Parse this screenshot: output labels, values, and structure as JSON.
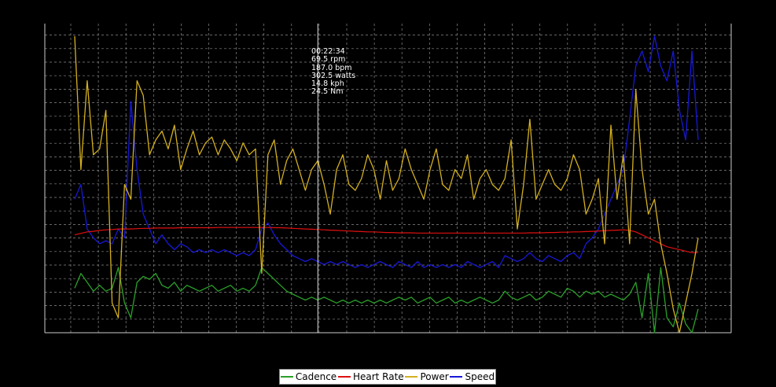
{
  "colors": {
    "background": "#000000",
    "grid": "#8a8a8a",
    "axis": "#cccccc",
    "crosshair": "#e0e0e0",
    "cadence": "#2aa02a",
    "heart_rate": "#e01010",
    "power": "#d4b020",
    "speed": "#1818d8"
  },
  "tooltip": {
    "time": "00:22:34",
    "cadence": "69.5 rpm",
    "heart_rate": "187.0 bpm",
    "power": "302.5 watts",
    "speed": "14.8 kph",
    "torque": "24.5 Nm"
  },
  "legend": {
    "cadence": "Cadence",
    "heart_rate": "Heart Rate",
    "power": "Power",
    "speed": "Speed"
  },
  "chart_data": {
    "type": "line",
    "title": "",
    "xlabel": "",
    "ylabel": "",
    "grid": true,
    "legend_position": "bottom",
    "crosshair_x": 0.39,
    "x": [
      0,
      0.01,
      0.02,
      0.03,
      0.04,
      0.05,
      0.06,
      0.07,
      0.08,
      0.09,
      0.1,
      0.11,
      0.12,
      0.13,
      0.14,
      0.15,
      0.16,
      0.17,
      0.18,
      0.19,
      0.2,
      0.21,
      0.22,
      0.23,
      0.24,
      0.25,
      0.26,
      0.27,
      0.28,
      0.29,
      0.3,
      0.31,
      0.32,
      0.33,
      0.34,
      0.35,
      0.36,
      0.37,
      0.38,
      0.39,
      0.4,
      0.41,
      0.42,
      0.43,
      0.44,
      0.45,
      0.46,
      0.47,
      0.48,
      0.49,
      0.5,
      0.51,
      0.52,
      0.53,
      0.54,
      0.55,
      0.56,
      0.57,
      0.58,
      0.59,
      0.6,
      0.61,
      0.62,
      0.63,
      0.64,
      0.65,
      0.66,
      0.67,
      0.68,
      0.69,
      0.7,
      0.71,
      0.72,
      0.73,
      0.74,
      0.75,
      0.76,
      0.77,
      0.78,
      0.79,
      0.8,
      0.81,
      0.82,
      0.83,
      0.84,
      0.85,
      0.86,
      0.87,
      0.88,
      0.89,
      0.9,
      0.91,
      0.92,
      0.93,
      0.94,
      0.95,
      0.96,
      0.97,
      0.98,
      0.99,
      1.0
    ],
    "series": [
      {
        "name": "Cadence",
        "values": [
          0.15,
          0.2,
          0.17,
          0.14,
          0.16,
          0.14,
          0.15,
          0.22,
          0.1,
          0.05,
          0.17,
          0.19,
          0.18,
          0.2,
          0.16,
          0.15,
          0.17,
          0.14,
          0.16,
          0.15,
          0.14,
          0.15,
          0.16,
          0.14,
          0.15,
          0.16,
          0.14,
          0.15,
          0.14,
          0.16,
          0.22,
          0.2,
          0.18,
          0.16,
          0.14,
          0.13,
          0.12,
          0.11,
          0.12,
          0.11,
          0.12,
          0.11,
          0.1,
          0.11,
          0.1,
          0.11,
          0.1,
          0.11,
          0.1,
          0.11,
          0.1,
          0.11,
          0.12,
          0.11,
          0.12,
          0.1,
          0.11,
          0.12,
          0.1,
          0.11,
          0.12,
          0.1,
          0.11,
          0.1,
          0.11,
          0.12,
          0.11,
          0.1,
          0.11,
          0.14,
          0.12,
          0.11,
          0.12,
          0.13,
          0.11,
          0.12,
          0.14,
          0.13,
          0.12,
          0.15,
          0.14,
          0.12,
          0.14,
          0.13,
          0.14,
          0.12,
          0.13,
          0.12,
          0.11,
          0.13,
          0.17,
          0.05,
          0.2,
          0.0,
          0.22,
          0.05,
          0.02,
          0.1,
          0.03,
          0.0,
          0.08
        ]
      },
      {
        "name": "Heart Rate",
        "values": [
          0.33,
          0.335,
          0.34,
          0.342,
          0.345,
          0.347,
          0.348,
          0.35,
          0.35,
          0.35,
          0.351,
          0.352,
          0.352,
          0.353,
          0.353,
          0.353,
          0.353,
          0.354,
          0.354,
          0.354,
          0.354,
          0.354,
          0.354,
          0.355,
          0.355,
          0.355,
          0.355,
          0.355,
          0.355,
          0.355,
          0.355,
          0.355,
          0.354,
          0.354,
          0.353,
          0.352,
          0.351,
          0.35,
          0.349,
          0.348,
          0.347,
          0.346,
          0.345,
          0.344,
          0.343,
          0.342,
          0.341,
          0.34,
          0.34,
          0.339,
          0.338,
          0.338,
          0.337,
          0.337,
          0.337,
          0.336,
          0.336,
          0.336,
          0.336,
          0.336,
          0.336,
          0.336,
          0.336,
          0.336,
          0.336,
          0.336,
          0.336,
          0.336,
          0.336,
          0.336,
          0.336,
          0.336,
          0.336,
          0.337,
          0.337,
          0.337,
          0.338,
          0.338,
          0.339,
          0.339,
          0.34,
          0.34,
          0.341,
          0.342,
          0.343,
          0.344,
          0.345,
          0.346,
          0.347,
          0.345,
          0.34,
          0.33,
          0.32,
          0.31,
          0.3,
          0.29,
          0.285,
          0.28,
          0.275,
          0.27,
          0.27
        ]
      },
      {
        "name": "Power",
        "values": [
          1.0,
          0.55,
          0.85,
          0.6,
          0.62,
          0.75,
          0.1,
          0.05,
          0.5,
          0.45,
          0.85,
          0.8,
          0.6,
          0.65,
          0.68,
          0.62,
          0.7,
          0.55,
          0.62,
          0.68,
          0.6,
          0.64,
          0.66,
          0.6,
          0.65,
          0.62,
          0.58,
          0.64,
          0.6,
          0.62,
          0.2,
          0.6,
          0.65,
          0.5,
          0.58,
          0.62,
          0.55,
          0.48,
          0.55,
          0.58,
          0.5,
          0.4,
          0.55,
          0.6,
          0.5,
          0.48,
          0.52,
          0.6,
          0.55,
          0.45,
          0.58,
          0.48,
          0.52,
          0.62,
          0.55,
          0.5,
          0.45,
          0.55,
          0.62,
          0.5,
          0.48,
          0.55,
          0.52,
          0.6,
          0.45,
          0.52,
          0.55,
          0.5,
          0.48,
          0.52,
          0.65,
          0.35,
          0.5,
          0.72,
          0.45,
          0.5,
          0.55,
          0.5,
          0.48,
          0.52,
          0.6,
          0.55,
          0.4,
          0.45,
          0.52,
          0.3,
          0.7,
          0.45,
          0.6,
          0.3,
          0.82,
          0.55,
          0.4,
          0.45,
          0.3,
          0.2,
          0.08,
          0.0,
          0.1,
          0.2,
          0.32
        ]
      },
      {
        "name": "Speed",
        "values": [
          0.45,
          0.5,
          0.35,
          0.32,
          0.3,
          0.31,
          0.3,
          0.35,
          0.32,
          0.78,
          0.55,
          0.4,
          0.35,
          0.3,
          0.33,
          0.3,
          0.28,
          0.3,
          0.29,
          0.27,
          0.28,
          0.27,
          0.28,
          0.27,
          0.28,
          0.27,
          0.26,
          0.27,
          0.26,
          0.28,
          0.35,
          0.37,
          0.33,
          0.3,
          0.28,
          0.26,
          0.25,
          0.24,
          0.25,
          0.24,
          0.23,
          0.24,
          0.23,
          0.24,
          0.23,
          0.22,
          0.23,
          0.22,
          0.23,
          0.24,
          0.23,
          0.22,
          0.24,
          0.23,
          0.22,
          0.24,
          0.22,
          0.23,
          0.22,
          0.23,
          0.22,
          0.23,
          0.22,
          0.24,
          0.23,
          0.22,
          0.23,
          0.24,
          0.22,
          0.26,
          0.25,
          0.24,
          0.25,
          0.27,
          0.25,
          0.24,
          0.26,
          0.25,
          0.24,
          0.26,
          0.27,
          0.25,
          0.3,
          0.32,
          0.35,
          0.4,
          0.45,
          0.5,
          0.55,
          0.72,
          0.9,
          0.95,
          0.88,
          1.0,
          0.9,
          0.85,
          0.95,
          0.75,
          0.65,
          0.95,
          0.65
        ]
      }
    ]
  }
}
